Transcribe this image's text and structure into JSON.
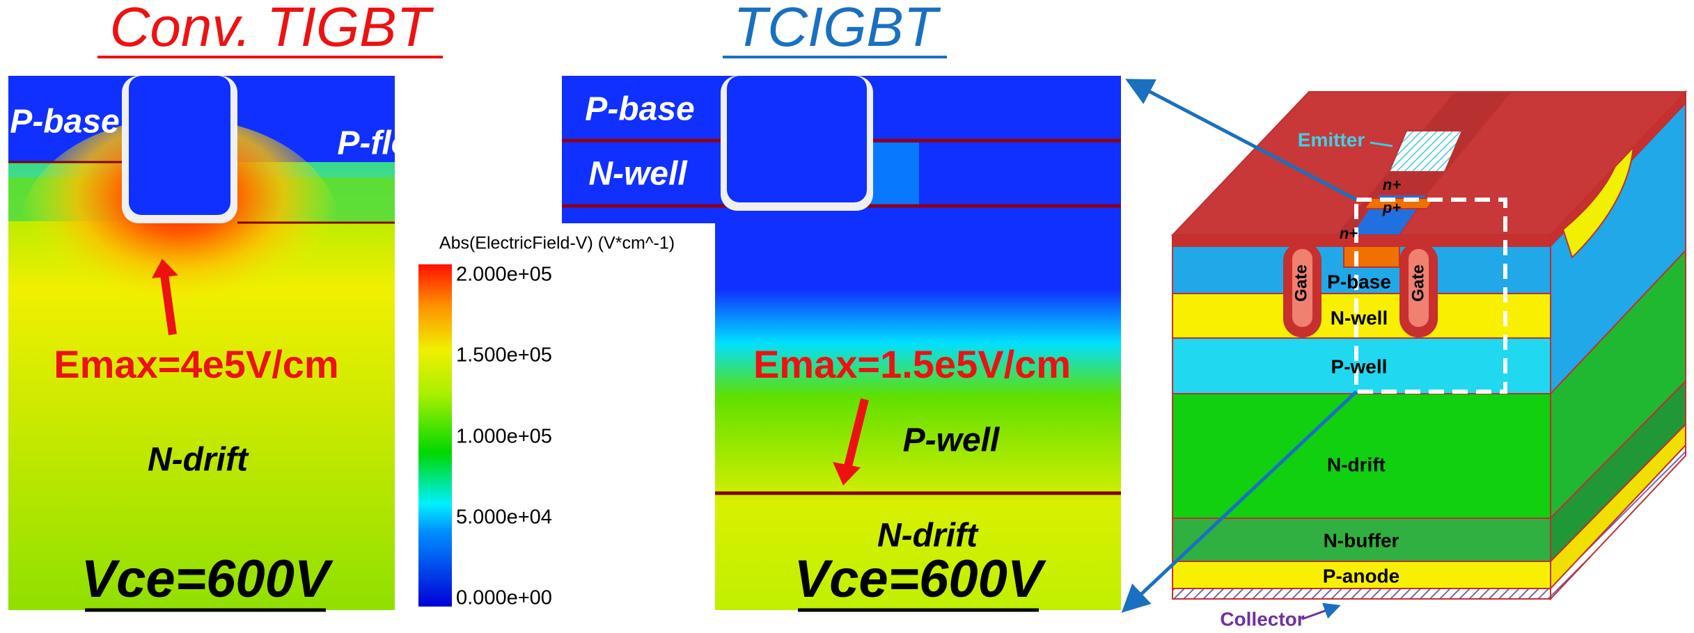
{
  "titles": {
    "left": "Conv. TIGBT",
    "middle": "TCIGBT"
  },
  "left_panel": {
    "p_base": "P-base",
    "p_float": "P-float",
    "emax": "Emax=4e5V/cm",
    "n_drift": "N-drift",
    "vce": "Vce=600V"
  },
  "middle_panel": {
    "p_base": "P-base",
    "n_well": "N-well",
    "emax": "Emax=1.5e5V/cm",
    "p_well": "P-well",
    "n_drift": "N-drift",
    "vce": "Vce=600V"
  },
  "colorbar": {
    "title": "Abs(ElectricField-V) (V*cm^-1)",
    "ticks": [
      "2.000e+05",
      "1.500e+05",
      "1.000e+05",
      "5.000e+04",
      "0.000e+00"
    ]
  },
  "device": {
    "emitter": "Emitter",
    "n_plus_top": "n+",
    "p_plus": "p+",
    "n_plus_left": "n+",
    "gate_left": "Gate",
    "gate_right": "Gate",
    "p_base": "P-base",
    "n_well": "N-well",
    "p_well": "P-well",
    "n_drift": "N-drift",
    "n_buffer": "N-buffer",
    "p_anode": "P-anode",
    "collector": "Collector"
  }
}
